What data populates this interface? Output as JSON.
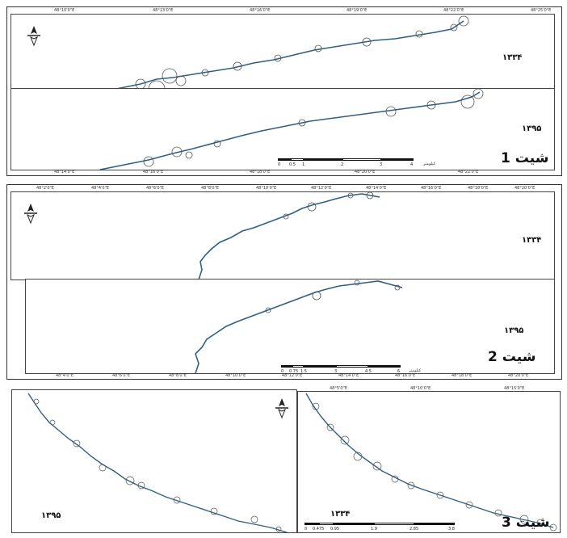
{
  "sheets": [
    {
      "label": "شیت 1",
      "top_ticks": [
        "48°10'0\"E",
        "48°13'0\"E",
        "48°16'0\"E",
        "48°19'0\"E",
        "48°22'0\"E",
        "48°25'0\"E"
      ],
      "bottom_ticks": [
        "48°14'0\"E",
        "48°16'0\"E",
        "48°18'0\"E",
        "48°20'0\"E",
        "48°22'0\"E"
      ],
      "panels": [
        {
          "year": "۱۳۳۴"
        },
        {
          "year": "۱۳۹۵"
        }
      ],
      "scale": {
        "ticks": [
          "0",
          "0.5",
          "1",
          "2",
          "3",
          "4"
        ],
        "unit": "کیلومتر"
      }
    },
    {
      "label": "شیت 2",
      "top_ticks": [
        "48°2'0\"E",
        "48°4'0\"E",
        "48°6'0\"E",
        "48°8'0\"E",
        "48°10'0\"E",
        "48°12'0\"E",
        "48°14'0\"E",
        "48°16'0\"E",
        "48°18'0\"E",
        "48°20'0\"E"
      ],
      "bottom_ticks": [
        "48°4'0\"E",
        "48°6'0\"E",
        "48°8'0\"E",
        "48°10'0\"E",
        "48°12'0\"E",
        "48°14'0\"E",
        "48°16'0\"E",
        "48°18'0\"E",
        "48°20'0\"E"
      ],
      "panels": [
        {
          "year": "۱۳۳۴"
        },
        {
          "year": "۱۳۹۵"
        }
      ],
      "scale": {
        "ticks": [
          "0",
          "0.75",
          "1.5",
          "3",
          "4.5",
          "6"
        ],
        "unit": "کیلومتر"
      }
    },
    {
      "label": "شیت 3",
      "top_ticks": [
        "48°5'0\"E",
        "48°10'0\"E",
        "48°15'0\"E"
      ],
      "panels": [
        {
          "year": "۱۳۹۵"
        },
        {
          "year": "۱۳۳۴"
        }
      ],
      "scale": {
        "ticks": [
          "0",
          "0.475",
          "0.95",
          "1.9",
          "2.85",
          "3.8"
        ],
        "unit": "کیلومتر"
      }
    }
  ],
  "north_arrow": {
    "letter": "N",
    "icon": "north-arrow-icon"
  },
  "colors": {
    "river": "#2f5f86",
    "frame": "#333333",
    "circles": "#555555"
  }
}
